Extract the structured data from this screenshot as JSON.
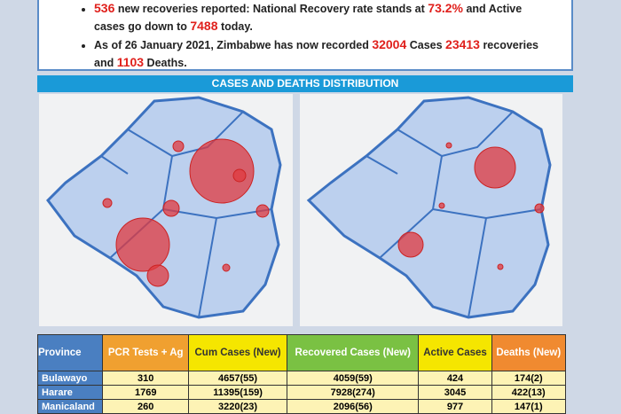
{
  "bullets": [
    [
      {
        "text": "536",
        "emphasis": true
      },
      {
        "text": " new recoveries reported: National Recovery rate stands at "
      },
      {
        "text": "73.2%",
        "emphasis": true
      },
      {
        "text": " and Active cases go down to "
      },
      {
        "text": "7488",
        "emphasis": true
      },
      {
        "text": " today."
      }
    ],
    [
      {
        "text": "As of 26 January 2021, Zimbabwe has now recorded "
      },
      {
        "text": "32004",
        "emphasis": true
      },
      {
        "text": "  Cases "
      },
      {
        "text": "23413",
        "emphasis": true
      },
      {
        "text": " recoveries and "
      },
      {
        "text": "1103",
        "emphasis": true
      },
      {
        "text": " Deaths."
      }
    ]
  ],
  "section_title": "CASES AND DEATHS DISTRIBUTION",
  "table": {
    "header": [
      "Province",
      "PCR Tests + Ag",
      "Cum Cases (New)",
      "Recovered Cases (New)",
      "Active Cases",
      "Deaths (New)"
    ],
    "rows": [
      [
        "Bulawayo",
        "310",
        "4657(55)",
        "4059(59)",
        "424",
        "174(2)"
      ],
      [
        "Harare",
        "1769",
        "11395(159)",
        "7928(274)",
        "3045",
        "422(13)"
      ],
      [
        "Manicaland",
        "260",
        "3220(23)",
        "2096(56)",
        "977",
        "147(1)"
      ]
    ]
  }
}
